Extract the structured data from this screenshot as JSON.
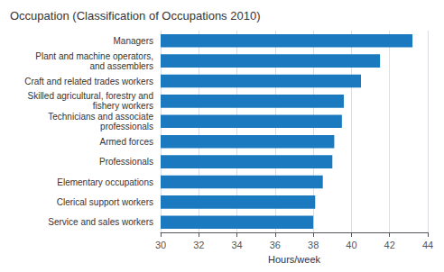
{
  "chart_data": {
    "type": "bar",
    "orientation": "horizontal",
    "title": "Occupation (Classification of Occupations 2010)",
    "xlabel": "Hours/week",
    "categories": [
      "Service and sales workers",
      "Clerical support workers",
      "Elementary occupations",
      "Professionals",
      "Armed forces",
      "Technicians and associate\nprofessionals",
      "Skilled agricultural, forestry and\nfishery workers",
      "Craft and related trades workers",
      "Plant and machine operators,\nand assemblers",
      "Managers"
    ],
    "values": [
      38.0,
      38.1,
      38.5,
      39.0,
      39.1,
      39.5,
      39.6,
      40.5,
      41.5,
      43.2
    ],
    "color": "#1b7abf",
    "xlim": [
      30,
      44
    ],
    "xticks": [
      30,
      32,
      34,
      36,
      38,
      40,
      42,
      44
    ],
    "grid": true
  }
}
